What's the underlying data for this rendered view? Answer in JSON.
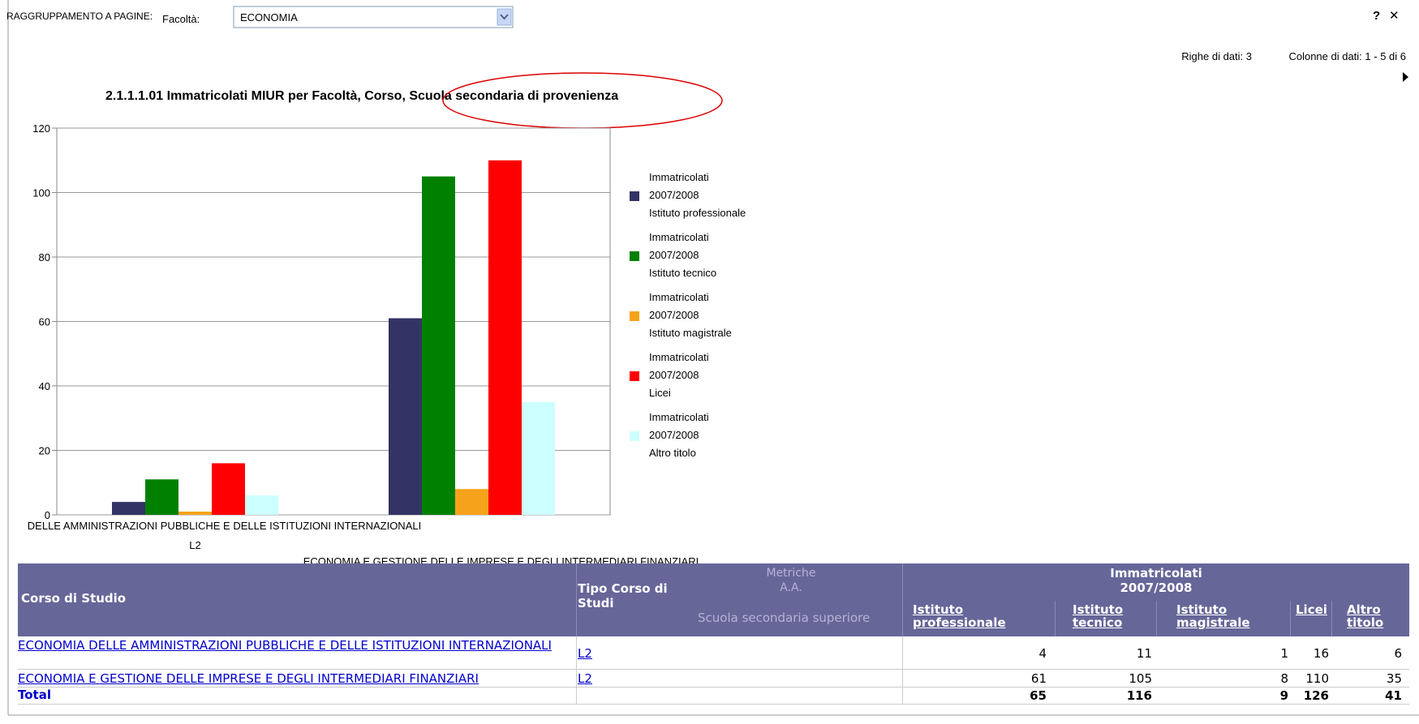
{
  "toolbar": {
    "grouping_label": "RAGGRUPPAMENTO A PAGINE:",
    "field_label": "Facoltà:",
    "field_value": "ECONOMIA",
    "help": "?",
    "close": "✕"
  },
  "info": {
    "rows": "Righe di dati: 3",
    "columns": "Colonne di dati: 1 - 5 di 6"
  },
  "chart_data": {
    "type": "bar",
    "title": "2.1.1.1.01 Immatricolati MIUR per Facoltà, Corso, Scuola secondaria di provenienza",
    "categories": [
      "DELLE AMMINISTRAZIONI PUBBLICHE E DELLE ISTITUZIONI INTERNAZIONALI",
      "ECONOMIA E GESTIONE DELLE IMPRESE E DEGLI INTERMEDIARI FINANZIARI"
    ],
    "category_sublabels": [
      "L2",
      null
    ],
    "series": [
      {
        "name": "Immatricolati\n2007/2008\nIstituto professionale",
        "color": "#333366",
        "values": [
          4,
          61
        ]
      },
      {
        "name": "Immatricolati\n2007/2008\nIstituto tecnico",
        "color": "#008000",
        "values": [
          11,
          105
        ]
      },
      {
        "name": "Immatricolati\n2007/2008\nIstituto magistrale",
        "color": "#f7a21b",
        "values": [
          1,
          8
        ]
      },
      {
        "name": "Immatricolati\n2007/2008\nLicei",
        "color": "#ff0000",
        "values": [
          16,
          110
        ]
      },
      {
        "name": "Immatricolati\n2007/2008\nAltro titolo",
        "color": "#ccffff",
        "values": [
          6,
          35
        ]
      }
    ],
    "ylim": [
      0,
      120
    ],
    "yticks": [
      0,
      20,
      40,
      60,
      80,
      100,
      120
    ],
    "grid": true
  },
  "table": {
    "header": {
      "corso": "Corso di Studio",
      "tipo": "Tipo Corso di Studi",
      "metriche": "Metriche\nA.A.",
      "scuola": "Scuola secondaria superiore",
      "group": "Immatricolati\n2007/2008",
      "columns": [
        "Istituto\nprofessionale",
        "Istituto\ntecnico",
        "Istituto\nmagistrale",
        "Licei",
        "Altro\ntitolo"
      ]
    },
    "rows": [
      {
        "corso": "ECONOMIA DELLE AMMINISTRAZIONI PUBBLICHE E DELLE ISTITUZIONI INTERNAZIONALI",
        "tipo": "L2",
        "values": [
          4,
          11,
          1,
          16,
          6
        ]
      },
      {
        "corso": "ECONOMIA E GESTIONE DELLE IMPRESE E DEGLI INTERMEDIARI FINANZIARI",
        "tipo": "L2",
        "values": [
          61,
          105,
          8,
          110,
          35
        ]
      }
    ],
    "total": {
      "label": "Total",
      "values": [
        65,
        116,
        9,
        126,
        41
      ]
    }
  }
}
